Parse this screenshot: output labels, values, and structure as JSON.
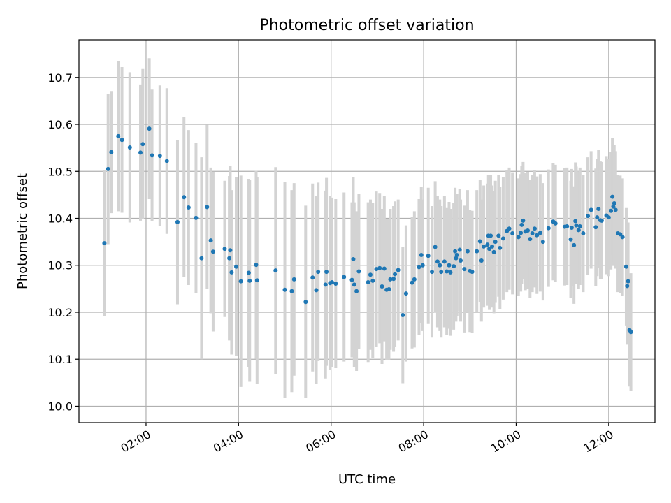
{
  "chart_data": {
    "type": "scatter",
    "title": "Photometric offset variation",
    "xlabel": "UTC time",
    "ylabel": "Photometric offset",
    "x_unit": "hours UTC",
    "xlim": [
      0.55,
      13.0
    ],
    "ylim": [
      9.965,
      10.78
    ],
    "x_ticks": [
      2,
      4,
      6,
      8,
      10,
      12
    ],
    "x_tick_labels": [
      "02:00",
      "04:00",
      "06:00",
      "08:00",
      "10:00",
      "12:00"
    ],
    "y_ticks": [
      10.0,
      10.1,
      10.2,
      10.3,
      10.4,
      10.5,
      10.6,
      10.7
    ],
    "y_tick_labels": [
      "10.0",
      "10.1",
      "10.2",
      "10.3",
      "10.4",
      "10.5",
      "10.6",
      "10.7"
    ],
    "grid": true,
    "colors": {
      "points": "#1f77b4",
      "errorbars": "#d3d3d3"
    },
    "points": [
      [
        1.1,
        10.347,
        0.155
      ],
      [
        1.18,
        10.505,
        0.16
      ],
      [
        1.25,
        10.541,
        0.13
      ],
      [
        1.4,
        10.575,
        0.16
      ],
      [
        1.48,
        10.567,
        0.155
      ],
      [
        1.65,
        10.551,
        0.16
      ],
      [
        1.88,
        10.54,
        0.145
      ],
      [
        1.93,
        10.558,
        0.16
      ],
      [
        2.07,
        10.591,
        0.15
      ],
      [
        2.13,
        10.534,
        0.14
      ],
      [
        2.3,
        10.533,
        0.15
      ],
      [
        2.45,
        10.522,
        0.155
      ],
      [
        2.68,
        10.392,
        0.175
      ],
      [
        2.82,
        10.445,
        0.17
      ],
      [
        2.92,
        10.423,
        0.165
      ],
      [
        3.08,
        10.401,
        0.16
      ],
      [
        3.2,
        10.315,
        0.215
      ],
      [
        3.32,
        10.424,
        0.175
      ],
      [
        3.4,
        10.353,
        0.155
      ],
      [
        3.45,
        10.329,
        0.17
      ],
      [
        3.7,
        10.335,
        0.145
      ],
      [
        3.8,
        10.315,
        0.175
      ],
      [
        3.85,
        10.285,
        0.175
      ],
      [
        3.82,
        10.332,
        0.18
      ],
      [
        3.95,
        10.297,
        0.19
      ],
      [
        4.05,
        10.266,
        0.225
      ],
      [
        4.22,
        10.284,
        0.2
      ],
      [
        4.24,
        10.267,
        0.215
      ],
      [
        4.38,
        10.301,
        0.2
      ],
      [
        4.4,
        10.268,
        0.22
      ],
      [
        4.8,
        10.289,
        0.22
      ],
      [
        5.0,
        10.248,
        0.23
      ],
      [
        5.15,
        10.245,
        0.215
      ],
      [
        5.2,
        10.27,
        0.205
      ],
      [
        5.45,
        10.222,
        0.205
      ],
      [
        5.6,
        10.274,
        0.2
      ],
      [
        5.68,
        10.247,
        0.2
      ],
      [
        5.72,
        10.286,
        0.19
      ],
      [
        5.88,
        10.259,
        0.2
      ],
      [
        5.9,
        10.286,
        0.2
      ],
      [
        5.98,
        10.262,
        0.185
      ],
      [
        6.02,
        10.264,
        0.18
      ],
      [
        6.1,
        10.261,
        0.18
      ],
      [
        6.28,
        10.275,
        0.18
      ],
      [
        6.45,
        10.269,
        0.165
      ],
      [
        6.48,
        10.313,
        0.175
      ],
      [
        6.5,
        10.259,
        0.175
      ],
      [
        6.55,
        10.245,
        0.17
      ],
      [
        6.6,
        10.287,
        0.165
      ],
      [
        6.8,
        10.264,
        0.17
      ],
      [
        6.85,
        10.28,
        0.16
      ],
      [
        6.9,
        10.267,
        0.165
      ],
      [
        6.98,
        10.292,
        0.165
      ],
      [
        7.05,
        10.294,
        0.16
      ],
      [
        7.1,
        10.255,
        0.165
      ],
      [
        7.15,
        10.293,
        0.155
      ],
      [
        7.2,
        10.248,
        0.15
      ],
      [
        7.25,
        10.249,
        0.15
      ],
      [
        7.28,
        10.27,
        0.15
      ],
      [
        7.35,
        10.271,
        0.155
      ],
      [
        7.38,
        10.281,
        0.155
      ],
      [
        7.45,
        10.29,
        0.15
      ],
      [
        7.55,
        10.194,
        0.145
      ],
      [
        7.62,
        10.24,
        0.145
      ],
      [
        7.75,
        10.263,
        0.14
      ],
      [
        7.8,
        10.27,
        0.145
      ],
      [
        7.9,
        10.296,
        0.145
      ],
      [
        7.95,
        10.322,
        0.145
      ],
      [
        7.98,
        10.3,
        0.14
      ],
      [
        8.1,
        10.32,
        0.145
      ],
      [
        8.18,
        10.286,
        0.14
      ],
      [
        8.25,
        10.339,
        0.14
      ],
      [
        8.3,
        10.308,
        0.14
      ],
      [
        8.35,
        10.3,
        0.14
      ],
      [
        8.38,
        10.286,
        0.14
      ],
      [
        8.45,
        10.308,
        0.14
      ],
      [
        8.5,
        10.287,
        0.135
      ],
      [
        8.55,
        10.3,
        0.135
      ],
      [
        8.58,
        10.285,
        0.135
      ],
      [
        8.65,
        10.298,
        0.135
      ],
      [
        8.68,
        10.33,
        0.135
      ],
      [
        8.7,
        10.315,
        0.135
      ],
      [
        8.72,
        10.322,
        0.13
      ],
      [
        8.78,
        10.333,
        0.13
      ],
      [
        8.8,
        10.31,
        0.13
      ],
      [
        8.88,
        10.292,
        0.135
      ],
      [
        8.95,
        10.33,
        0.13
      ],
      [
        9.0,
        10.288,
        0.13
      ],
      [
        9.05,
        10.286,
        0.13
      ],
      [
        9.15,
        10.33,
        0.13
      ],
      [
        9.22,
        10.351,
        0.13
      ],
      [
        9.25,
        10.31,
        0.13
      ],
      [
        9.3,
        10.34,
        0.13
      ],
      [
        9.38,
        10.344,
        0.13
      ],
      [
        9.4,
        10.363,
        0.13
      ],
      [
        9.42,
        10.335,
        0.13
      ],
      [
        9.45,
        10.363,
        0.13
      ],
      [
        9.48,
        10.34,
        0.13
      ],
      [
        9.52,
        10.328,
        0.13
      ],
      [
        9.55,
        10.35,
        0.13
      ],
      [
        9.62,
        10.363,
        0.13
      ],
      [
        9.65,
        10.337,
        0.13
      ],
      [
        9.72,
        10.357,
        0.13
      ],
      [
        9.8,
        10.373,
        0.13
      ],
      [
        9.85,
        10.378,
        0.13
      ],
      [
        9.92,
        10.368,
        0.13
      ],
      [
        10.05,
        10.36,
        0.125
      ],
      [
        10.1,
        10.369,
        0.125
      ],
      [
        10.12,
        10.386,
        0.125
      ],
      [
        10.15,
        10.395,
        0.125
      ],
      [
        10.2,
        10.372,
        0.125
      ],
      [
        10.25,
        10.374,
        0.125
      ],
      [
        10.3,
        10.356,
        0.125
      ],
      [
        10.35,
        10.368,
        0.125
      ],
      [
        10.4,
        10.378,
        0.125
      ],
      [
        10.45,
        10.364,
        0.125
      ],
      [
        10.52,
        10.369,
        0.125
      ],
      [
        10.58,
        10.35,
        0.125
      ],
      [
        10.7,
        10.379,
        0.125
      ],
      [
        10.8,
        10.393,
        0.125
      ],
      [
        10.85,
        10.389,
        0.125
      ],
      [
        11.05,
        10.382,
        0.125
      ],
      [
        11.1,
        10.383,
        0.125
      ],
      [
        11.18,
        10.355,
        0.125
      ],
      [
        11.2,
        10.38,
        0.125
      ],
      [
        11.25,
        10.343,
        0.125
      ],
      [
        11.28,
        10.394,
        0.125
      ],
      [
        11.3,
        10.385,
        0.125
      ],
      [
        11.35,
        10.375,
        0.125
      ],
      [
        11.38,
        10.383,
        0.125
      ],
      [
        11.45,
        10.368,
        0.125
      ],
      [
        11.55,
        10.405,
        0.125
      ],
      [
        11.62,
        10.418,
        0.125
      ],
      [
        11.72,
        10.381,
        0.125
      ],
      [
        11.75,
        10.402,
        0.125
      ],
      [
        11.78,
        10.42,
        0.125
      ],
      [
        11.82,
        10.396,
        0.125
      ],
      [
        11.85,
        10.395,
        0.125
      ],
      [
        11.95,
        10.406,
        0.125
      ],
      [
        12.0,
        10.402,
        0.125
      ],
      [
        12.05,
        10.416,
        0.125
      ],
      [
        12.08,
        10.446,
        0.125
      ],
      [
        12.1,
        10.425,
        0.125
      ],
      [
        12.12,
        10.432,
        0.125
      ],
      [
        12.15,
        10.418,
        0.125
      ],
      [
        12.2,
        10.368,
        0.125
      ],
      [
        12.25,
        10.366,
        0.125
      ],
      [
        12.3,
        10.36,
        0.125
      ],
      [
        12.38,
        10.297,
        0.125
      ],
      [
        12.4,
        10.256,
        0.125
      ],
      [
        12.42,
        10.266,
        0.125
      ],
      [
        12.45,
        10.162,
        0.12
      ],
      [
        12.48,
        10.158,
        0.125
      ]
    ]
  }
}
